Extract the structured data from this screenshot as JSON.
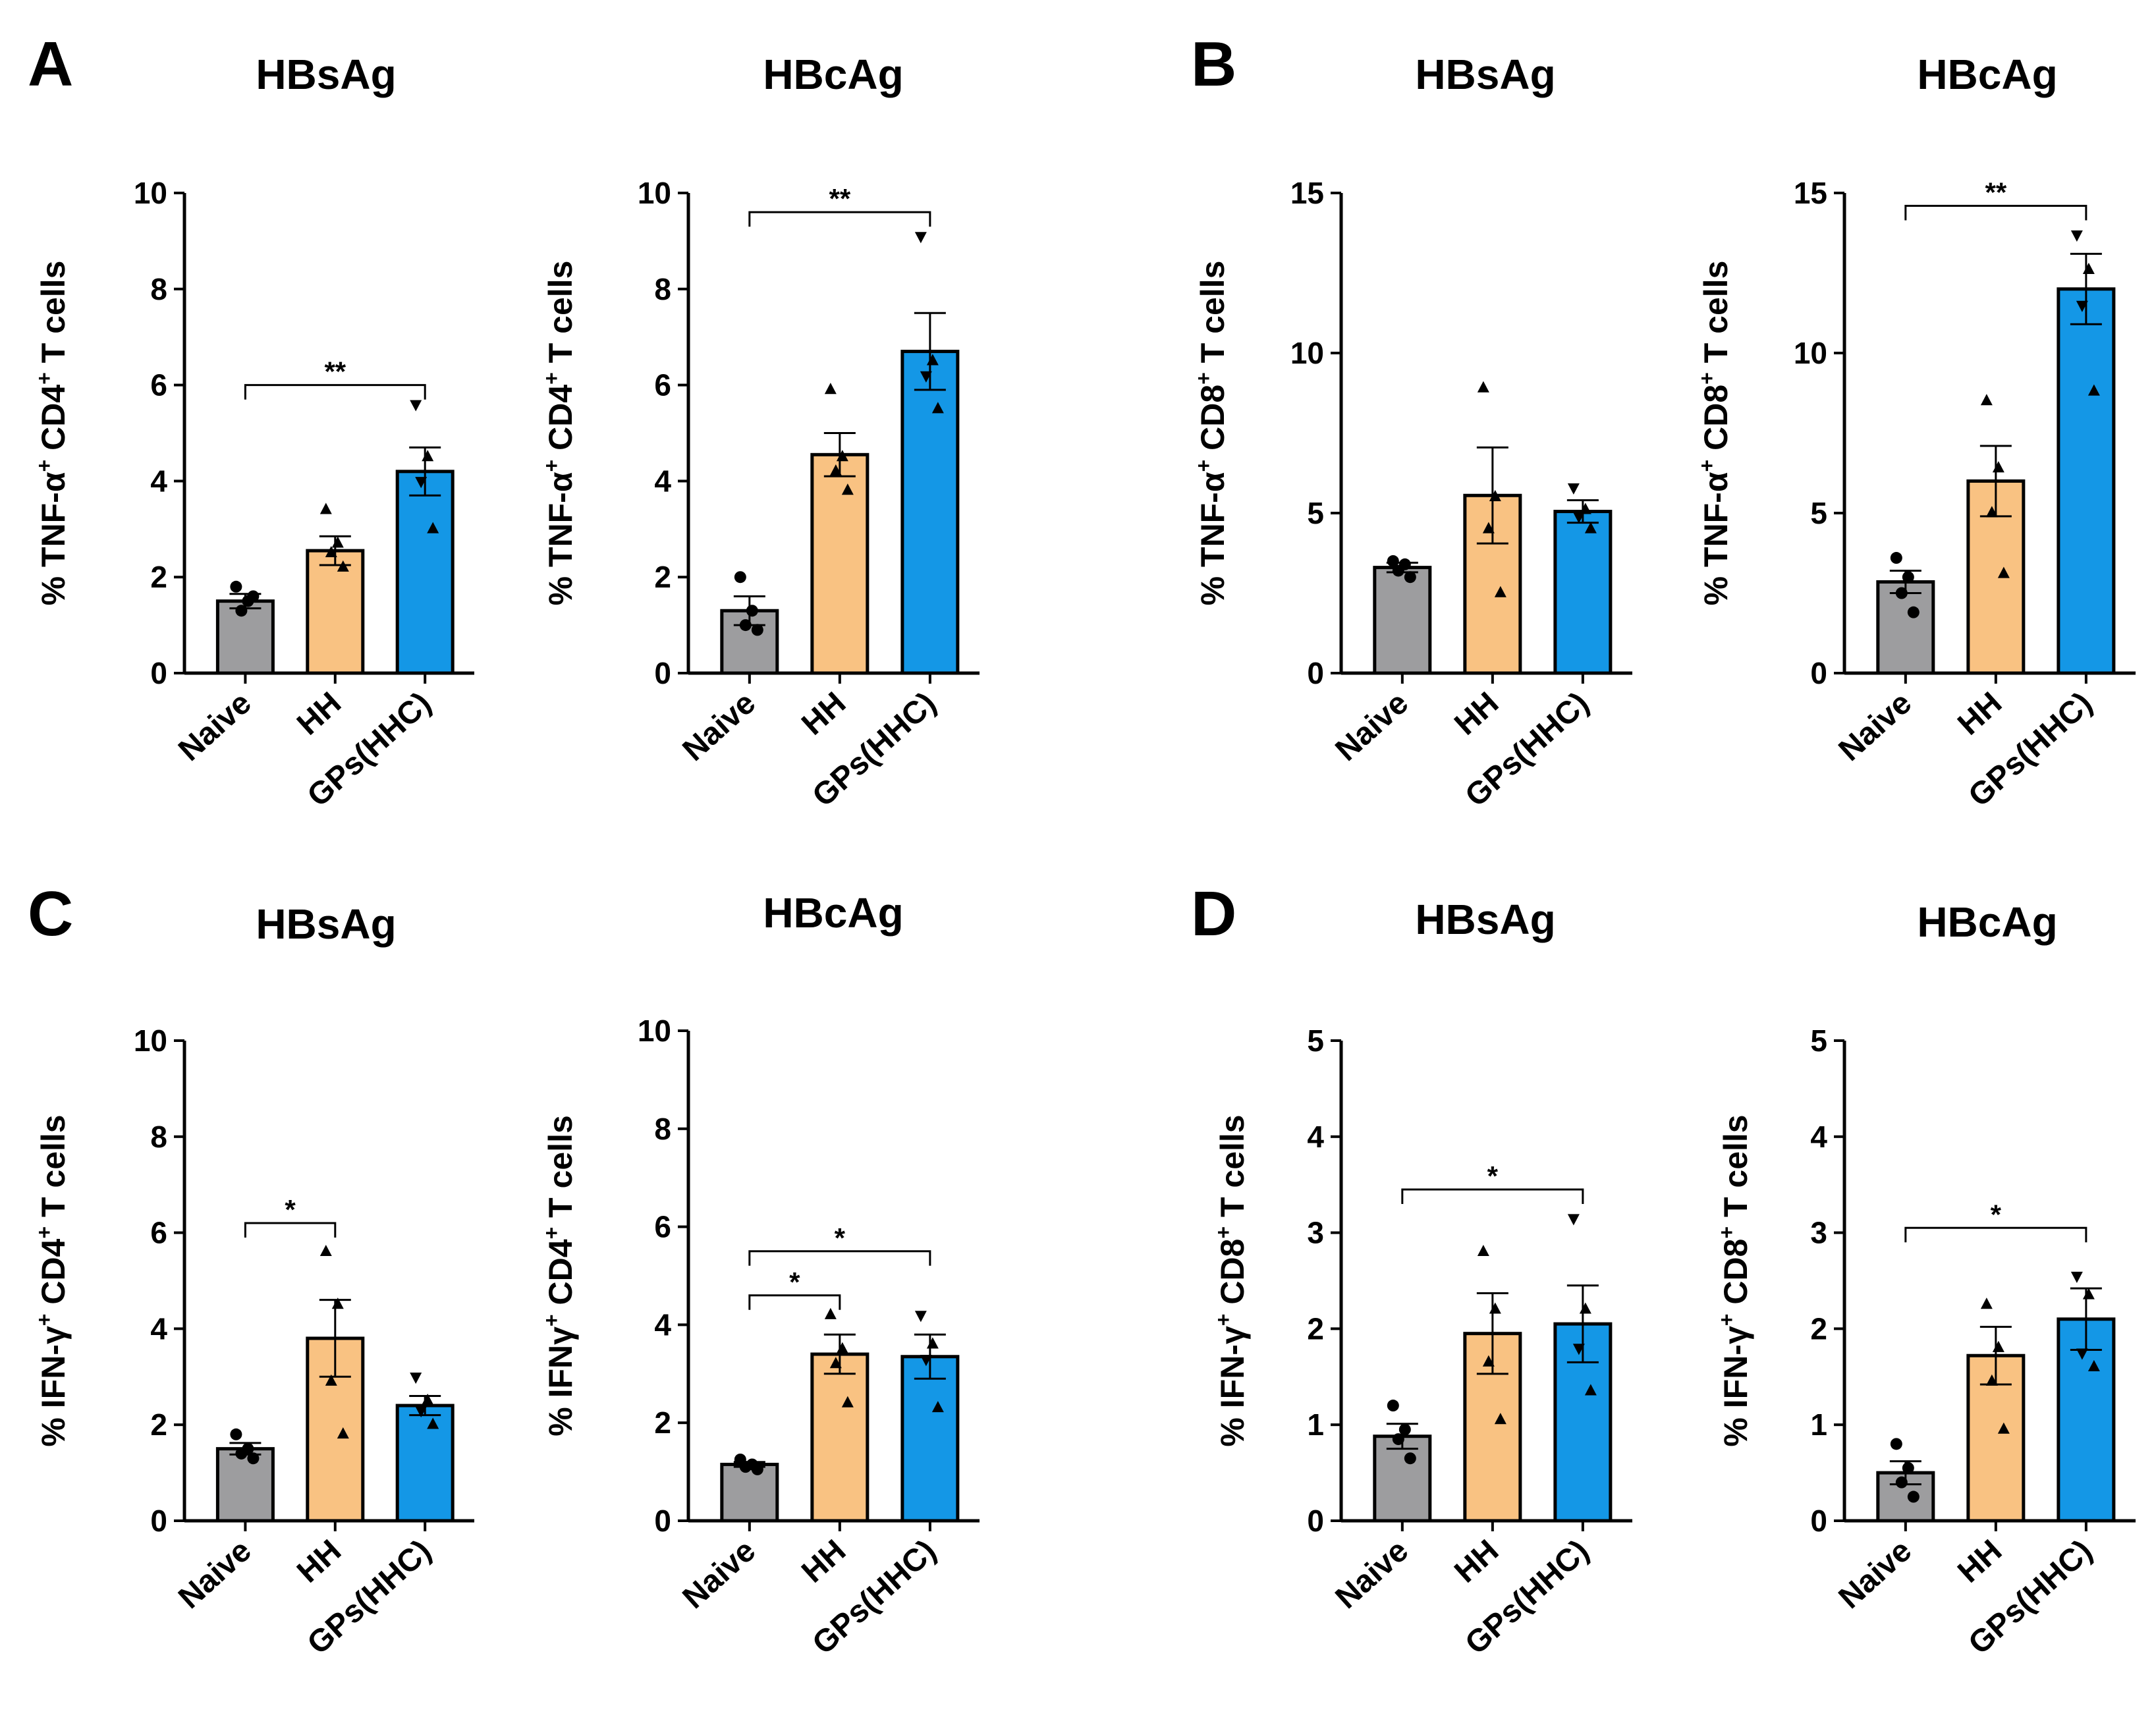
{
  "figure": {
    "colors": {
      "Naive": "#9d9d9f",
      "HH": "#f9c282",
      "GPs(HHC)": "#1497e6"
    },
    "panels": [
      {
        "letter": "A",
        "chart_indices": [
          0,
          1
        ]
      },
      {
        "letter": "B",
        "chart_indices": [
          2,
          3
        ]
      },
      {
        "letter": "C",
        "chart_indices": [
          4,
          5
        ]
      },
      {
        "letter": "D",
        "chart_indices": [
          6,
          7
        ]
      }
    ]
  },
  "chart_data": [
    {
      "type": "bar",
      "title": "HBsAg",
      "ylabel": {
        "prefix": "% TNF-α",
        "sup1": "+",
        "mid": " CD4",
        "sup2": "+",
        "suffix": " T cells"
      },
      "categories": [
        "Naive",
        "HH",
        "GPs(HHC)"
      ],
      "values": [
        1.5,
        2.55,
        4.2
      ],
      "error": [
        0.15,
        0.3,
        0.5
      ],
      "points": [
        [
          1.8,
          1.5,
          1.3,
          1.6
        ],
        [
          3.4,
          2.7,
          2.5,
          2.2
        ],
        [
          5.6,
          4.5,
          4.0,
          3.0
        ]
      ],
      "ylim": [
        0,
        10
      ],
      "yticks": [
        0,
        2,
        4,
        6,
        8,
        10
      ],
      "significance": [
        {
          "from": 0,
          "to": 2,
          "label": "**",
          "y": 6.0
        }
      ]
    },
    {
      "type": "bar",
      "title": "HBcAg",
      "ylabel": {
        "prefix": "% TNF-α",
        "sup1": "+",
        "mid": " CD4",
        "sup2": "+",
        "suffix": " T cells"
      },
      "categories": [
        "Naive",
        "HH",
        "GPs(HHC)"
      ],
      "values": [
        1.3,
        4.55,
        6.7
      ],
      "error": [
        0.3,
        0.45,
        0.8
      ],
      "points": [
        [
          2.0,
          1.3,
          1.0,
          0.9
        ],
        [
          5.9,
          4.5,
          4.2,
          3.8
        ],
        [
          9.1,
          6.5,
          6.2,
          5.5
        ]
      ],
      "ylim": [
        0,
        10
      ],
      "yticks": [
        0,
        2,
        4,
        6,
        8,
        10
      ],
      "significance": [
        {
          "from": 0,
          "to": 2,
          "label": "**",
          "y": 9.6
        }
      ]
    },
    {
      "type": "bar",
      "title": "HBsAg",
      "ylabel": {
        "prefix": "% TNF-α",
        "sup1": "+",
        "mid": " CD8",
        "sup2": "+",
        "suffix": " T cells"
      },
      "categories": [
        "Naive",
        "HH",
        "GPs(HHC)"
      ],
      "values": [
        3.3,
        5.55,
        5.05
      ],
      "error": [
        0.15,
        1.5,
        0.35
      ],
      "points": [
        [
          3.5,
          3.4,
          3.2,
          3.0
        ],
        [
          8.9,
          5.5,
          4.5,
          2.5
        ],
        [
          5.8,
          5.1,
          4.9,
          4.5
        ]
      ],
      "ylim": [
        0,
        15
      ],
      "yticks": [
        0,
        5,
        10,
        15
      ],
      "significance": []
    },
    {
      "type": "bar",
      "title": "HBcAg",
      "ylabel": {
        "prefix": "% TNF-α",
        "sup1": "+",
        "mid": " CD8",
        "sup2": "+",
        "suffix": " T cells"
      },
      "categories": [
        "Naive",
        "HH",
        "GPs(HHC)"
      ],
      "values": [
        2.85,
        6.0,
        12.0
      ],
      "error": [
        0.35,
        1.1,
        1.1
      ],
      "points": [
        [
          3.6,
          3.0,
          2.5,
          1.9
        ],
        [
          8.5,
          6.4,
          5.0,
          3.1
        ],
        [
          13.7,
          12.6,
          11.5,
          8.8
        ]
      ],
      "ylim": [
        0,
        15
      ],
      "yticks": [
        0,
        5,
        10,
        15
      ],
      "significance": [
        {
          "from": 0,
          "to": 2,
          "label": "**",
          "y": 14.6
        }
      ]
    },
    {
      "type": "bar",
      "title": "HBsAg",
      "ylabel": {
        "prefix": "% IFN-γ",
        "sup1": "+",
        "mid": " CD4",
        "sup2": "+",
        "suffix": " T cells"
      },
      "categories": [
        "Naive",
        "HH",
        "GPs(HHC)"
      ],
      "values": [
        1.5,
        3.8,
        2.4
      ],
      "error": [
        0.12,
        0.8,
        0.2
      ],
      "points": [
        [
          1.8,
          1.5,
          1.4,
          1.3
        ],
        [
          5.6,
          4.5,
          2.9,
          1.8
        ],
        [
          3.0,
          2.5,
          2.3,
          2.0
        ]
      ],
      "ylim": [
        0,
        10
      ],
      "yticks": [
        0,
        2,
        4,
        6,
        8,
        10
      ],
      "significance": [
        {
          "from": 0,
          "to": 1,
          "label": "*",
          "y": 6.2
        }
      ]
    },
    {
      "type": "bar",
      "title": "HBcAg",
      "ylabel": {
        "prefix": "% IFNγ",
        "sup1": "+",
        "mid": " CD4",
        "sup2": "+",
        "suffix": " T cells"
      },
      "categories": [
        "Naive",
        "HH",
        "GPs(HHC)"
      ],
      "values": [
        1.15,
        3.4,
        3.35
      ],
      "error": [
        0.05,
        0.4,
        0.45
      ],
      "points": [
        [
          1.25,
          1.15,
          1.1,
          1.05
        ],
        [
          4.2,
          3.5,
          3.2,
          2.4
        ],
        [
          4.2,
          3.6,
          3.3,
          2.3
        ]
      ],
      "ylim": [
        0,
        10
      ],
      "yticks": [
        0,
        2,
        4,
        6,
        8,
        10
      ],
      "significance": [
        {
          "from": 0,
          "to": 1,
          "label": "*",
          "y": 4.6
        },
        {
          "from": 0,
          "to": 2,
          "label": "*",
          "y": 5.5
        }
      ]
    },
    {
      "type": "bar",
      "title": "HBsAg",
      "ylabel": {
        "prefix": "% IFN-γ",
        "sup1": "+",
        "mid": " CD8",
        "sup2": "+",
        "suffix": " T cells"
      },
      "categories": [
        "Naive",
        "HH",
        "GPs(HHC)"
      ],
      "values": [
        0.88,
        1.95,
        2.05
      ],
      "error": [
        0.13,
        0.42,
        0.4
      ],
      "points": [
        [
          1.2,
          0.95,
          0.85,
          0.65
        ],
        [
          2.8,
          2.2,
          1.65,
          1.05
        ],
        [
          3.15,
          2.2,
          1.8,
          1.35
        ]
      ],
      "ylim": [
        0,
        5
      ],
      "yticks": [
        0,
        1,
        2,
        3,
        4,
        5
      ],
      "significance": [
        {
          "from": 0,
          "to": 2,
          "label": "*",
          "y": 3.45
        }
      ]
    },
    {
      "type": "bar",
      "title": "HBcAg",
      "ylabel": {
        "prefix": "% IFN-γ",
        "sup1": "+",
        "mid": " CD8",
        "sup2": "+",
        "suffix": " T cells"
      },
      "categories": [
        "Naive",
        "HH",
        "GPs(HHC)"
      ],
      "values": [
        0.5,
        1.72,
        2.1
      ],
      "error": [
        0.12,
        0.3,
        0.32
      ],
      "points": [
        [
          0.8,
          0.55,
          0.4,
          0.25
        ],
        [
          2.25,
          1.8,
          1.45,
          0.95
        ],
        [
          2.55,
          2.35,
          1.75,
          1.6
        ]
      ],
      "ylim": [
        0,
        5
      ],
      "yticks": [
        0,
        1,
        2,
        3,
        4,
        5
      ],
      "significance": [
        {
          "from": 0,
          "to": 2,
          "label": "*",
          "y": 3.05
        }
      ]
    }
  ]
}
